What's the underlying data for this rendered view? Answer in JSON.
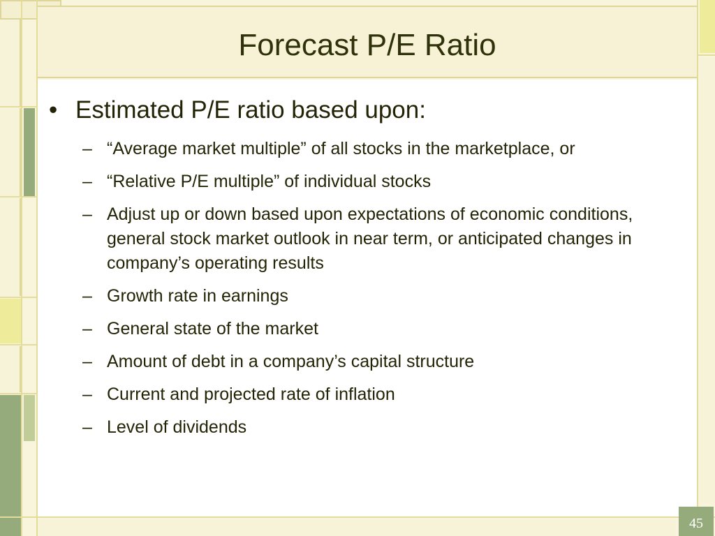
{
  "slide": {
    "title": "Forecast P/E Ratio",
    "bullet": {
      "marker": "•",
      "text": "Estimated P/E ratio based upon:"
    },
    "sub_marker": "–",
    "sub_items": [
      "“Average market multiple” of all stocks in the marketplace, or",
      "“Relative P/E multiple” of individual stocks",
      "Adjust up or down based upon expectations of economic conditions, general stock market outlook in near term, or anticipated changes in company’s operating results",
      "Growth rate in earnings",
      "General state of the market",
      "Amount of debt in a company’s capital structure",
      "Current and projected rate of inflation",
      "Level of dividends"
    ],
    "page_number": "45"
  },
  "colors": {
    "background": "#f9f5dc",
    "accent_green": "#96ab7c",
    "accent_yellow": "#eeeb9a",
    "title_text": "#2e3109",
    "body_text": "#232306"
  }
}
